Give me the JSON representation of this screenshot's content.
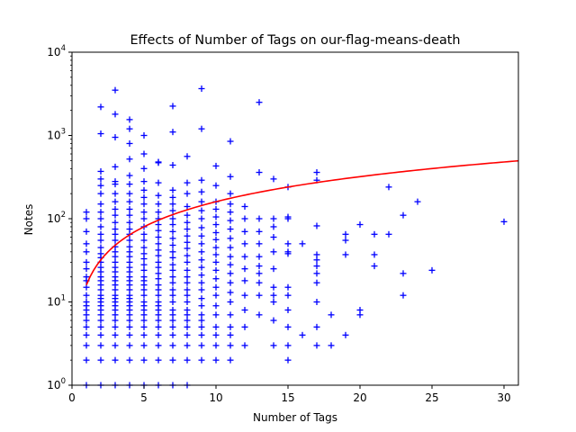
{
  "chart_data": {
    "type": "scatter",
    "title": "Effects of Number of Tags on our-flag-means-death",
    "xlabel": "Number of Tags",
    "ylabel": "Notes",
    "xlim": [
      0,
      31
    ],
    "ylim": [
      1,
      10000
    ],
    "yscale": "log",
    "grid": false,
    "marker": "+",
    "marker_color": "#0000ff",
    "fit_color": "#ff0000",
    "x_ticks": [
      0,
      5,
      10,
      15,
      20,
      25,
      30
    ],
    "x_tick_labels": [
      "0",
      "5",
      "10",
      "15",
      "20",
      "25",
      "30"
    ],
    "y_ticks": [
      1,
      10,
      100,
      1000,
      10000
    ],
    "y_tick_labels": [
      {
        "base": "10",
        "exp": "0"
      },
      {
        "base": "10",
        "exp": "1"
      },
      {
        "base": "10",
        "exp": "2"
      },
      {
        "base": "10",
        "exp": "3"
      },
      {
        "base": "10",
        "exp": "4"
      }
    ],
    "points": [
      [
        1,
        1
      ],
      [
        1,
        2
      ],
      [
        1,
        3
      ],
      [
        1,
        4
      ],
      [
        1,
        5
      ],
      [
        1,
        6
      ],
      [
        1,
        7
      ],
      [
        1,
        8
      ],
      [
        1,
        9
      ],
      [
        1,
        10
      ],
      [
        1,
        12
      ],
      [
        1,
        15
      ],
      [
        1,
        18
      ],
      [
        1,
        20
      ],
      [
        1,
        25
      ],
      [
        1,
        30
      ],
      [
        1,
        40
      ],
      [
        1,
        50
      ],
      [
        1,
        70
      ],
      [
        1,
        100
      ],
      [
        1,
        120
      ],
      [
        2,
        1
      ],
      [
        2,
        2
      ],
      [
        2,
        3
      ],
      [
        2,
        4
      ],
      [
        2,
        5
      ],
      [
        2,
        6
      ],
      [
        2,
        7
      ],
      [
        2,
        8
      ],
      [
        2,
        9
      ],
      [
        2,
        10
      ],
      [
        2,
        11
      ],
      [
        2,
        12
      ],
      [
        2,
        14
      ],
      [
        2,
        16
      ],
      [
        2,
        18
      ],
      [
        2,
        20
      ],
      [
        2,
        23
      ],
      [
        2,
        26
      ],
      [
        2,
        30
      ],
      [
        2,
        34
      ],
      [
        2,
        38
      ],
      [
        2,
        45
      ],
      [
        2,
        55
      ],
      [
        2,
        65
      ],
      [
        2,
        80
      ],
      [
        2,
        100
      ],
      [
        2,
        120
      ],
      [
        2,
        150
      ],
      [
        2,
        200
      ],
      [
        2,
        250
      ],
      [
        2,
        300
      ],
      [
        2,
        370
      ],
      [
        2,
        1050
      ],
      [
        2,
        2200
      ],
      [
        3,
        1
      ],
      [
        3,
        2
      ],
      [
        3,
        3
      ],
      [
        3,
        4
      ],
      [
        3,
        5
      ],
      [
        3,
        6
      ],
      [
        3,
        7
      ],
      [
        3,
        8
      ],
      [
        3,
        9
      ],
      [
        3,
        10
      ],
      [
        3,
        11
      ],
      [
        3,
        12
      ],
      [
        3,
        14
      ],
      [
        3,
        16
      ],
      [
        3,
        18
      ],
      [
        3,
        20
      ],
      [
        3,
        23
      ],
      [
        3,
        26
      ],
      [
        3,
        30
      ],
      [
        3,
        35
      ],
      [
        3,
        40
      ],
      [
        3,
        46
      ],
      [
        3,
        55
      ],
      [
        3,
        65
      ],
      [
        3,
        75
      ],
      [
        3,
        90
      ],
      [
        3,
        110
      ],
      [
        3,
        130
      ],
      [
        3,
        160
      ],
      [
        3,
        200
      ],
      [
        3,
        260
      ],
      [
        3,
        280
      ],
      [
        3,
        420
      ],
      [
        3,
        950
      ],
      [
        3,
        1800
      ],
      [
        3,
        3500
      ],
      [
        4,
        1
      ],
      [
        4,
        2
      ],
      [
        4,
        3
      ],
      [
        4,
        4
      ],
      [
        4,
        5
      ],
      [
        4,
        6
      ],
      [
        4,
        7
      ],
      [
        4,
        8
      ],
      [
        4,
        9
      ],
      [
        4,
        10
      ],
      [
        4,
        11
      ],
      [
        4,
        12
      ],
      [
        4,
        14
      ],
      [
        4,
        16
      ],
      [
        4,
        18
      ],
      [
        4,
        20
      ],
      [
        4,
        23
      ],
      [
        4,
        26
      ],
      [
        4,
        30
      ],
      [
        4,
        35
      ],
      [
        4,
        40
      ],
      [
        4,
        46
      ],
      [
        4,
        55
      ],
      [
        4,
        65
      ],
      [
        4,
        75
      ],
      [
        4,
        90
      ],
      [
        4,
        110
      ],
      [
        4,
        130
      ],
      [
        4,
        160
      ],
      [
        4,
        200
      ],
      [
        4,
        260
      ],
      [
        4,
        330
      ],
      [
        4,
        520
      ],
      [
        4,
        800
      ],
      [
        4,
        1200
      ],
      [
        4,
        1550
      ],
      [
        5,
        1
      ],
      [
        5,
        2
      ],
      [
        5,
        3
      ],
      [
        5,
        4
      ],
      [
        5,
        5
      ],
      [
        5,
        6
      ],
      [
        5,
        7
      ],
      [
        5,
        8
      ],
      [
        5,
        9
      ],
      [
        5,
        10
      ],
      [
        5,
        12
      ],
      [
        5,
        14
      ],
      [
        5,
        16
      ],
      [
        5,
        18
      ],
      [
        5,
        20
      ],
      [
        5,
        24
      ],
      [
        5,
        28
      ],
      [
        5,
        33
      ],
      [
        5,
        38
      ],
      [
        5,
        45
      ],
      [
        5,
        55
      ],
      [
        5,
        65
      ],
      [
        5,
        80
      ],
      [
        5,
        100
      ],
      [
        5,
        120
      ],
      [
        5,
        150
      ],
      [
        5,
        180
      ],
      [
        5,
        220
      ],
      [
        5,
        280
      ],
      [
        5,
        400
      ],
      [
        5,
        600
      ],
      [
        5,
        1000
      ],
      [
        6,
        1
      ],
      [
        6,
        2
      ],
      [
        6,
        3
      ],
      [
        6,
        4
      ],
      [
        6,
        5
      ],
      [
        6,
        6
      ],
      [
        6,
        7
      ],
      [
        6,
        8
      ],
      [
        6,
        9
      ],
      [
        6,
        10
      ],
      [
        6,
        12
      ],
      [
        6,
        14
      ],
      [
        6,
        16
      ],
      [
        6,
        19
      ],
      [
        6,
        22
      ],
      [
        6,
        26
      ],
      [
        6,
        30
      ],
      [
        6,
        36
      ],
      [
        6,
        42
      ],
      [
        6,
        50
      ],
      [
        6,
        60
      ],
      [
        6,
        72
      ],
      [
        6,
        85
      ],
      [
        6,
        100
      ],
      [
        6,
        120
      ],
      [
        6,
        150
      ],
      [
        6,
        190
      ],
      [
        6,
        270
      ],
      [
        6,
        470
      ],
      [
        6,
        480
      ],
      [
        7,
        1
      ],
      [
        7,
        2
      ],
      [
        7,
        3
      ],
      [
        7,
        4
      ],
      [
        7,
        5
      ],
      [
        7,
        6
      ],
      [
        7,
        7
      ],
      [
        7,
        8
      ],
      [
        7,
        10
      ],
      [
        7,
        12
      ],
      [
        7,
        14
      ],
      [
        7,
        17
      ],
      [
        7,
        20
      ],
      [
        7,
        24
      ],
      [
        7,
        28
      ],
      [
        7,
        34
      ],
      [
        7,
        40
      ],
      [
        7,
        48
      ],
      [
        7,
        58
      ],
      [
        7,
        70
      ],
      [
        7,
        85
      ],
      [
        7,
        100
      ],
      [
        7,
        125
      ],
      [
        7,
        150
      ],
      [
        7,
        180
      ],
      [
        7,
        220
      ],
      [
        7,
        440
      ],
      [
        7,
        1100
      ],
      [
        7,
        2250
      ],
      [
        7,
        10500
      ],
      [
        8,
        1
      ],
      [
        8,
        2
      ],
      [
        8,
        3
      ],
      [
        8,
        4
      ],
      [
        8,
        5
      ],
      [
        8,
        6
      ],
      [
        8,
        7
      ],
      [
        8,
        8
      ],
      [
        8,
        10
      ],
      [
        8,
        12
      ],
      [
        8,
        14
      ],
      [
        8,
        17
      ],
      [
        8,
        20
      ],
      [
        8,
        24
      ],
      [
        8,
        30
      ],
      [
        8,
        36
      ],
      [
        8,
        44
      ],
      [
        8,
        52
      ],
      [
        8,
        62
      ],
      [
        8,
        75
      ],
      [
        8,
        90
      ],
      [
        8,
        110
      ],
      [
        8,
        140
      ],
      [
        8,
        200
      ],
      [
        8,
        270
      ],
      [
        8,
        560
      ],
      [
        9,
        2
      ],
      [
        9,
        3
      ],
      [
        9,
        4
      ],
      [
        9,
        5
      ],
      [
        9,
        6
      ],
      [
        9,
        7
      ],
      [
        9,
        9
      ],
      [
        9,
        11
      ],
      [
        9,
        14
      ],
      [
        9,
        17
      ],
      [
        9,
        21
      ],
      [
        9,
        26
      ],
      [
        9,
        32
      ],
      [
        9,
        40
      ],
      [
        9,
        50
      ],
      [
        9,
        62
      ],
      [
        9,
        78
      ],
      [
        9,
        100
      ],
      [
        9,
        125
      ],
      [
        9,
        160
      ],
      [
        9,
        210
      ],
      [
        9,
        290
      ],
      [
        9,
        1200
      ],
      [
        9,
        3650
      ],
      [
        10,
        2
      ],
      [
        10,
        3
      ],
      [
        10,
        4
      ],
      [
        10,
        5
      ],
      [
        10,
        7
      ],
      [
        10,
        9
      ],
      [
        10,
        12
      ],
      [
        10,
        15
      ],
      [
        10,
        19
      ],
      [
        10,
        24
      ],
      [
        10,
        30
      ],
      [
        10,
        37
      ],
      [
        10,
        45
      ],
      [
        10,
        56
      ],
      [
        10,
        68
      ],
      [
        10,
        85
      ],
      [
        10,
        105
      ],
      [
        10,
        130
      ],
      [
        10,
        160
      ],
      [
        10,
        250
      ],
      [
        10,
        430
      ],
      [
        11,
        2
      ],
      [
        11,
        3
      ],
      [
        11,
        4
      ],
      [
        11,
        5
      ],
      [
        11,
        7
      ],
      [
        11,
        10
      ],
      [
        11,
        13
      ],
      [
        11,
        17
      ],
      [
        11,
        22
      ],
      [
        11,
        28
      ],
      [
        11,
        35
      ],
      [
        11,
        45
      ],
      [
        11,
        58
      ],
      [
        11,
        75
      ],
      [
        11,
        95
      ],
      [
        11,
        120
      ],
      [
        11,
        150
      ],
      [
        11,
        200
      ],
      [
        11,
        320
      ],
      [
        11,
        850
      ],
      [
        12,
        3
      ],
      [
        12,
        5
      ],
      [
        12,
        8
      ],
      [
        12,
        12
      ],
      [
        12,
        18
      ],
      [
        12,
        25
      ],
      [
        12,
        35
      ],
      [
        12,
        50
      ],
      [
        12,
        70
      ],
      [
        12,
        100
      ],
      [
        12,
        140
      ],
      [
        13,
        7
      ],
      [
        13,
        12
      ],
      [
        13,
        17
      ],
      [
        13,
        22
      ],
      [
        13,
        27
      ],
      [
        13,
        35
      ],
      [
        13,
        50
      ],
      [
        13,
        70
      ],
      [
        13,
        100
      ],
      [
        13,
        360
      ],
      [
        13,
        2500
      ],
      [
        14,
        3
      ],
      [
        14,
        6
      ],
      [
        14,
        10
      ],
      [
        14,
        12
      ],
      [
        14,
        15
      ],
      [
        14,
        25
      ],
      [
        14,
        40
      ],
      [
        14,
        60
      ],
      [
        14,
        80
      ],
      [
        14,
        100
      ],
      [
        14,
        300
      ],
      [
        15,
        2
      ],
      [
        15,
        3
      ],
      [
        15,
        5
      ],
      [
        15,
        8
      ],
      [
        15,
        12
      ],
      [
        15,
        15
      ],
      [
        15,
        38
      ],
      [
        15,
        40
      ],
      [
        15,
        50
      ],
      [
        15,
        100
      ],
      [
        15,
        105
      ],
      [
        15,
        240
      ],
      [
        16,
        4
      ],
      [
        16,
        50
      ],
      [
        17,
        3
      ],
      [
        17,
        5
      ],
      [
        17,
        10
      ],
      [
        17,
        17
      ],
      [
        17,
        22
      ],
      [
        17,
        27
      ],
      [
        17,
        32
      ],
      [
        17,
        37
      ],
      [
        17,
        82
      ],
      [
        17,
        290
      ],
      [
        17,
        360
      ],
      [
        18,
        3
      ],
      [
        18,
        7
      ],
      [
        19,
        4
      ],
      [
        19,
        37
      ],
      [
        19,
        55
      ],
      [
        19,
        65
      ],
      [
        20,
        7
      ],
      [
        20,
        8
      ],
      [
        20,
        85
      ],
      [
        21,
        27
      ],
      [
        21,
        37
      ],
      [
        21,
        65
      ],
      [
        22,
        65
      ],
      [
        22,
        240
      ],
      [
        23,
        12
      ],
      [
        23,
        22
      ],
      [
        23,
        110
      ],
      [
        24,
        160
      ],
      [
        25,
        24
      ],
      [
        30,
        92
      ]
    ],
    "fit": {
      "label": "",
      "a": 16,
      "b": 1.0,
      "x_start": 1,
      "x_end": 31
    }
  }
}
